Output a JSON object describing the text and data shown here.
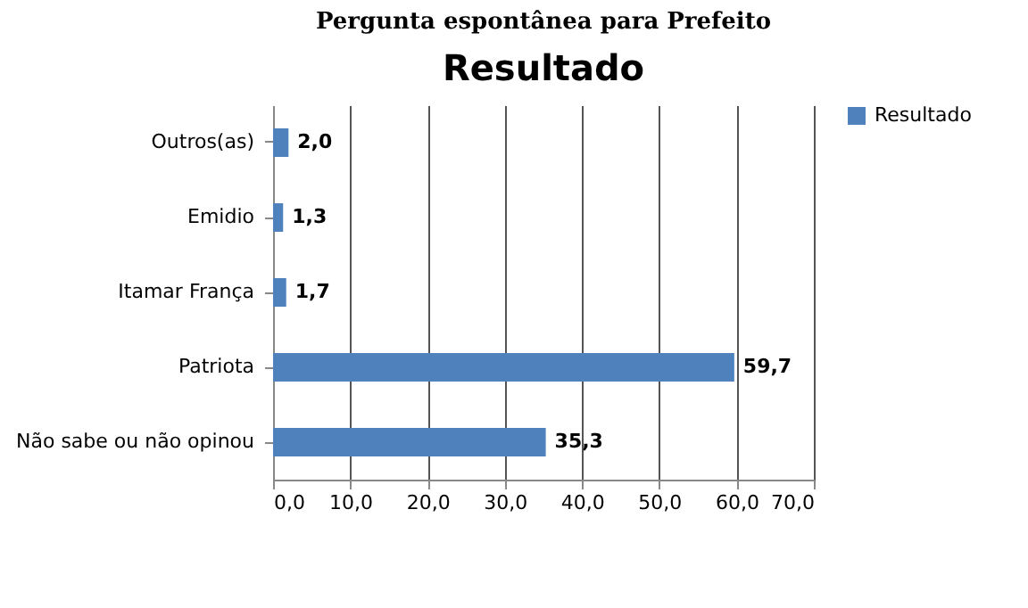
{
  "chart_data": {
    "type": "bar",
    "orientation": "horizontal",
    "title": "Pergunta espontânea para Prefeito",
    "subtitle": "Resultado",
    "categories": [
      "Outros(as)",
      "Emidio",
      "Itamar França",
      "Patriota",
      "Não sabe ou não opinou"
    ],
    "series": [
      {
        "name": "Resultado",
        "color": "#4f81bd",
        "values": [
          2.0,
          1.3,
          1.7,
          59.7,
          35.3
        ],
        "value_labels": [
          "2,0",
          "1,3",
          "1,7",
          "59,7",
          "35,3"
        ]
      }
    ],
    "xlim": [
      0,
      70
    ],
    "xticks": [
      {
        "value": 0,
        "label": "0,0"
      },
      {
        "value": 10,
        "label": "10,0"
      },
      {
        "value": 20,
        "label": "20,0"
      },
      {
        "value": 30,
        "label": "30,0"
      },
      {
        "value": 40,
        "label": "40,0"
      },
      {
        "value": 50,
        "label": "50,0"
      },
      {
        "value": 60,
        "label": "60,0"
      },
      {
        "value": 70,
        "label": "70,0"
      }
    ],
    "grid": "x",
    "legend": "right"
  }
}
